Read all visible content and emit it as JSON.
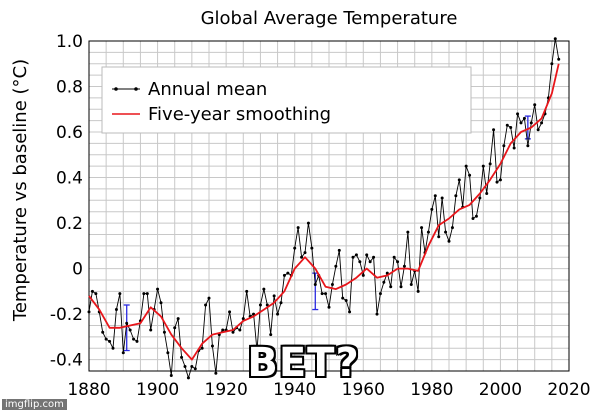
{
  "chart_data": {
    "type": "line",
    "title": "Global Average Temperature",
    "ylabel": "Temperature vs baseline (°C)",
    "xlabel": "",
    "xlim": [
      1880,
      2020
    ],
    "ylim": [
      -0.45,
      1.0
    ],
    "xticks": [
      1880,
      1900,
      1920,
      1940,
      1960,
      1980,
      2000,
      2020
    ],
    "yticks": [
      {
        "value": 1.0,
        "label": "1.0"
      },
      {
        "value": 0.8,
        "label": "0.8"
      },
      {
        "value": 0.6,
        "label": "0.6"
      },
      {
        "value": 0.4,
        "label": "0.4"
      },
      {
        "value": 0.2,
        "label": "0.2"
      },
      {
        "value": 0.0,
        "label": "0"
      },
      {
        "value": -0.2,
        "label": "-0.2"
      },
      {
        "value": -0.4,
        "label": "-0.4"
      }
    ],
    "grid": true,
    "legend_position": "top-left",
    "series": [
      {
        "name": "Annual mean",
        "color": "#000000",
        "marker": "dot",
        "x": [
          1880,
          1881,
          1882,
          1883,
          1884,
          1885,
          1886,
          1887,
          1888,
          1889,
          1890,
          1891,
          1892,
          1893,
          1894,
          1895,
          1896,
          1897,
          1898,
          1899,
          1900,
          1901,
          1902,
          1903,
          1904,
          1905,
          1906,
          1907,
          1908,
          1909,
          1910,
          1911,
          1912,
          1913,
          1914,
          1915,
          1916,
          1917,
          1918,
          1919,
          1920,
          1921,
          1922,
          1923,
          1924,
          1925,
          1926,
          1927,
          1928,
          1929,
          1930,
          1931,
          1932,
          1933,
          1934,
          1935,
          1936,
          1937,
          1938,
          1939,
          1940,
          1941,
          1942,
          1943,
          1944,
          1945,
          1946,
          1947,
          1948,
          1949,
          1950,
          1951,
          1952,
          1953,
          1954,
          1955,
          1956,
          1957,
          1958,
          1959,
          1960,
          1961,
          1962,
          1963,
          1964,
          1965,
          1966,
          1967,
          1968,
          1969,
          1970,
          1971,
          1972,
          1973,
          1974,
          1975,
          1976,
          1977,
          1978,
          1979,
          1980,
          1981,
          1982,
          1983,
          1984,
          1985,
          1986,
          1987,
          1988,
          1989,
          1990,
          1991,
          1992,
          1993,
          1994,
          1995,
          1996,
          1997,
          1998,
          1999,
          2000,
          2001,
          2002,
          2003,
          2004,
          2005,
          2006,
          2007,
          2008,
          2009,
          2010,
          2011,
          2012,
          2013,
          2014,
          2015,
          2016,
          2017
        ],
        "values": [
          -0.19,
          -0.1,
          -0.11,
          -0.19,
          -0.28,
          -0.31,
          -0.32,
          -0.35,
          -0.18,
          -0.11,
          -0.37,
          -0.24,
          -0.27,
          -0.31,
          -0.32,
          -0.23,
          -0.11,
          -0.11,
          -0.27,
          -0.18,
          -0.09,
          -0.15,
          -0.28,
          -0.37,
          -0.47,
          -0.26,
          -0.22,
          -0.39,
          -0.43,
          -0.48,
          -0.43,
          -0.44,
          -0.36,
          -0.35,
          -0.16,
          -0.13,
          -0.34,
          -0.46,
          -0.29,
          -0.27,
          -0.27,
          -0.19,
          -0.28,
          -0.26,
          -0.27,
          -0.22,
          -0.1,
          -0.21,
          -0.2,
          -0.36,
          -0.16,
          -0.09,
          -0.16,
          -0.29,
          -0.12,
          -0.2,
          -0.15,
          -0.03,
          -0.02,
          -0.03,
          0.09,
          0.18,
          0.05,
          0.07,
          0.2,
          0.09,
          -0.07,
          -0.03,
          -0.11,
          -0.11,
          -0.17,
          -0.07,
          0.01,
          0.08,
          -0.13,
          -0.14,
          -0.19,
          0.05,
          0.06,
          0.03,
          -0.03,
          0.06,
          0.03,
          0.05,
          -0.2,
          -0.11,
          -0.06,
          -0.02,
          -0.08,
          0.05,
          0.03,
          -0.08,
          0.01,
          0.16,
          -0.07,
          -0.01,
          -0.1,
          0.18,
          0.07,
          0.16,
          0.26,
          0.32,
          0.14,
          0.31,
          0.16,
          0.12,
          0.18,
          0.32,
          0.39,
          0.27,
          0.45,
          0.41,
          0.22,
          0.23,
          0.31,
          0.45,
          0.33,
          0.46,
          0.61,
          0.38,
          0.39,
          0.54,
          0.63,
          0.62,
          0.53,
          0.68,
          0.64,
          0.66,
          0.54,
          0.64,
          0.72,
          0.61,
          0.64,
          0.68,
          0.75,
          0.9,
          1.01,
          0.92
        ]
      },
      {
        "name": "Five-year smoothing",
        "color": "#e8161b",
        "x": [
          1880,
          1883,
          1886,
          1889,
          1892,
          1895,
          1898,
          1901,
          1904,
          1907,
          1910,
          1913,
          1916,
          1919,
          1922,
          1925,
          1928,
          1931,
          1934,
          1937,
          1940,
          1943,
          1946,
          1949,
          1952,
          1955,
          1958,
          1961,
          1964,
          1967,
          1970,
          1973,
          1976,
          1979,
          1982,
          1985,
          1988,
          1991,
          1994,
          1997,
          2000,
          2003,
          2006,
          2009,
          2012,
          2015,
          2017
        ],
        "values": [
          -0.12,
          -0.18,
          -0.26,
          -0.26,
          -0.25,
          -0.24,
          -0.17,
          -0.21,
          -0.29,
          -0.35,
          -0.4,
          -0.33,
          -0.29,
          -0.28,
          -0.27,
          -0.23,
          -0.21,
          -0.18,
          -0.15,
          -0.1,
          0.0,
          0.05,
          0.0,
          -0.08,
          -0.09,
          -0.07,
          -0.04,
          0.0,
          -0.04,
          -0.03,
          0.0,
          0.0,
          -0.01,
          0.1,
          0.19,
          0.22,
          0.26,
          0.28,
          0.33,
          0.39,
          0.46,
          0.55,
          0.6,
          0.62,
          0.66,
          0.77,
          0.9
        ]
      }
    ],
    "error_bars": [
      {
        "x": 1891,
        "low": -0.36,
        "high": -0.16
      },
      {
        "x": 1946,
        "low": -0.18,
        "high": -0.02
      },
      {
        "x": 2008,
        "low": 0.57,
        "high": 0.67
      }
    ]
  },
  "caption": "BET?",
  "watermark": "imgflip.com"
}
